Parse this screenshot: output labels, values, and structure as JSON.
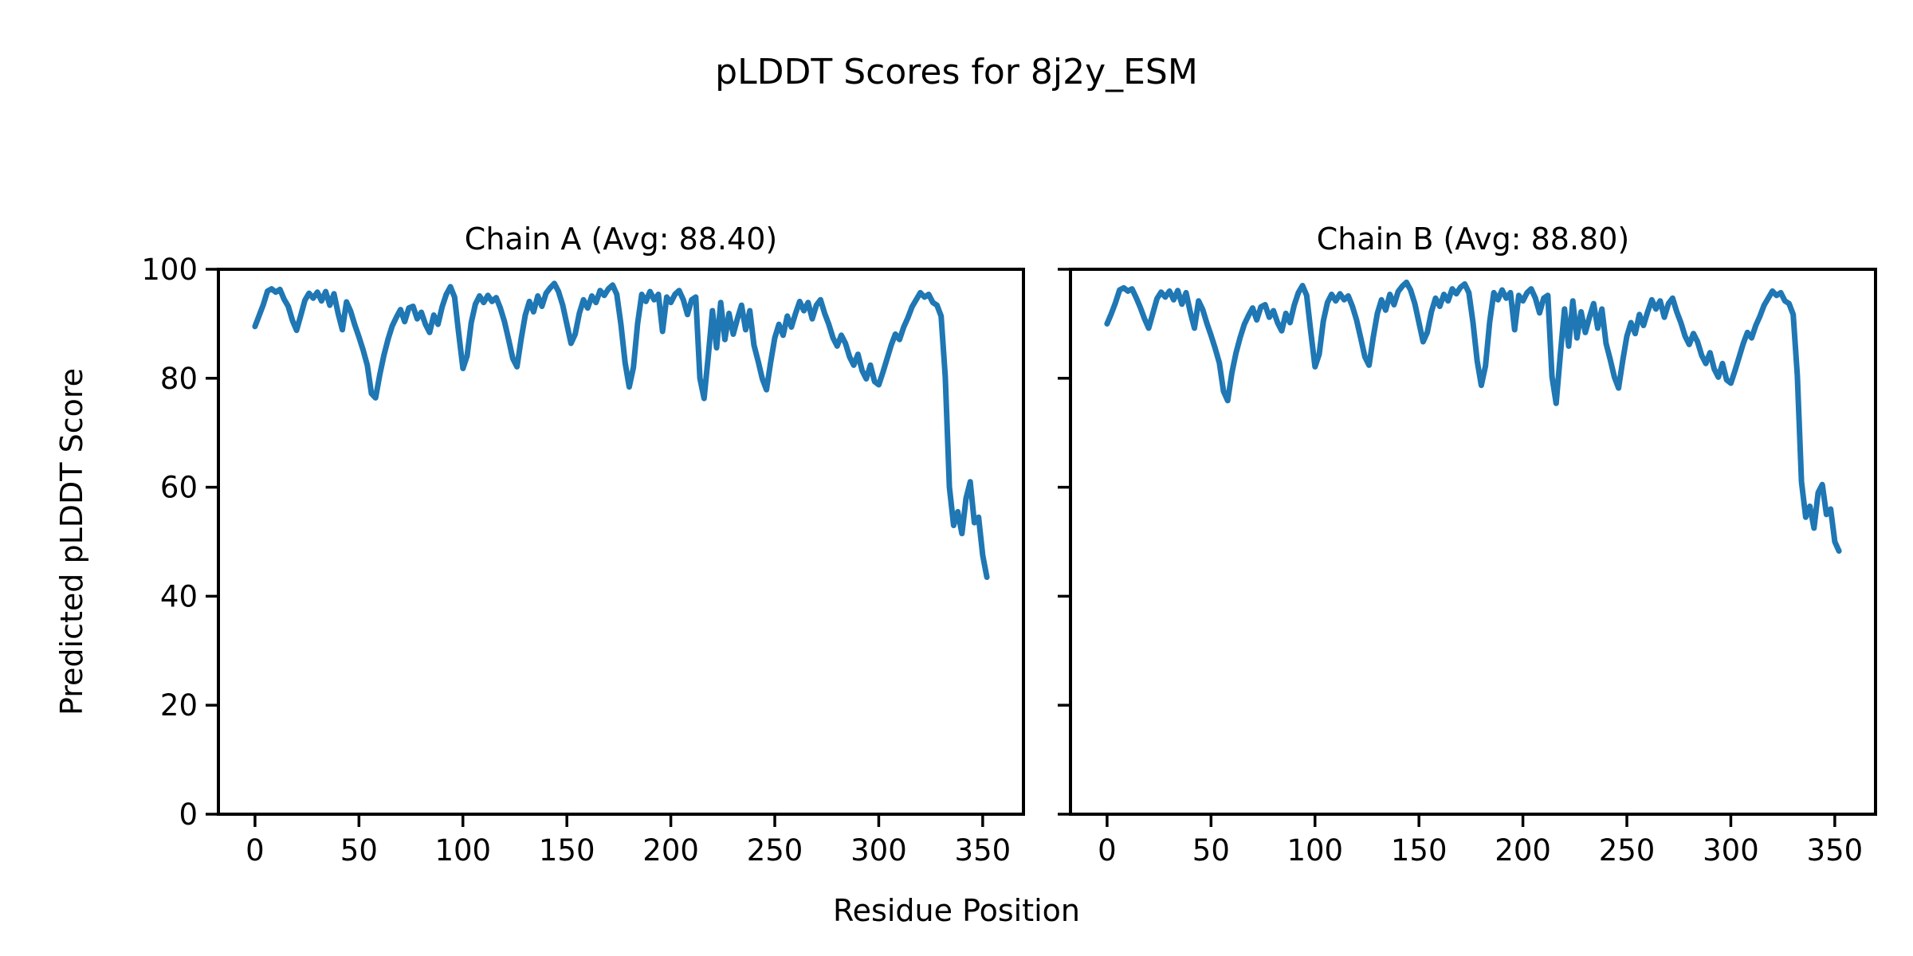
{
  "figure": {
    "title": "pLDDT Scores for 8j2y_ESM",
    "xlabel": "Residue Position",
    "ylabel": "Predicted pLDDT Score",
    "line_color": "#1f77b4",
    "background": "#ffffff",
    "spine_color": "#000000"
  },
  "chart_data": [
    {
      "type": "line",
      "title": "Chain A (Avg: 88.40)",
      "chain": "A",
      "avg": 88.4,
      "xlabel": "Residue Position",
      "ylabel": "Predicted pLDDT Score",
      "xlim": [
        -17.6,
        369.6
      ],
      "ylim": [
        0,
        100
      ],
      "xticks": [
        0,
        50,
        100,
        150,
        200,
        250,
        300,
        350
      ],
      "yticks": [
        0,
        20,
        40,
        60,
        80,
        100
      ],
      "show_ytick_labels": true,
      "grid": false,
      "legend": "none",
      "x": [
        0,
        2,
        4,
        6,
        8,
        10,
        12,
        14,
        16,
        18,
        20,
        22,
        24,
        26,
        28,
        30,
        32,
        34,
        36,
        38,
        40,
        42,
        44,
        46,
        48,
        50,
        52,
        54,
        56,
        58,
        60,
        62,
        64,
        66,
        68,
        70,
        72,
        74,
        76,
        78,
        80,
        82,
        84,
        86,
        88,
        90,
        92,
        94,
        96,
        98,
        100,
        102,
        104,
        106,
        108,
        110,
        112,
        114,
        116,
        118,
        120,
        122,
        124,
        126,
        128,
        130,
        132,
        134,
        136,
        138,
        140,
        142,
        144,
        146,
        148,
        150,
        152,
        154,
        156,
        158,
        160,
        162,
        164,
        166,
        168,
        170,
        172,
        174,
        176,
        178,
        180,
        182,
        184,
        186,
        188,
        190,
        192,
        194,
        196,
        198,
        200,
        202,
        204,
        206,
        208,
        210,
        212,
        214,
        216,
        218,
        220,
        222,
        224,
        226,
        228,
        230,
        232,
        234,
        236,
        238,
        240,
        242,
        244,
        246,
        248,
        250,
        252,
        254,
        256,
        258,
        260,
        262,
        264,
        266,
        268,
        270,
        272,
        274,
        276,
        278,
        280,
        282,
        284,
        286,
        288,
        290,
        292,
        294,
        296,
        298,
        300,
        302,
        304,
        306,
        308,
        310,
        312,
        314,
        316,
        318,
        320,
        322,
        324,
        326,
        328,
        330,
        332,
        334,
        336,
        338,
        340,
        342,
        344,
        346,
        348,
        350,
        352
      ],
      "values": [
        89.5,
        91.5,
        93.5,
        96.0,
        96.4,
        95.8,
        96.3,
        94.5,
        93.2,
        90.6,
        88.8,
        91.5,
        94.3,
        95.6,
        94.7,
        95.8,
        94.2,
        95.9,
        93.4,
        95.5,
        91.9,
        88.9,
        94.0,
        92.3,
        89.8,
        87.6,
        85.2,
        82.4,
        77.2,
        76.4,
        80.6,
        84.2,
        87.2,
        89.6,
        91.2,
        92.6,
        90.4,
        92.9,
        93.2,
        90.9,
        92.1,
        89.9,
        88.4,
        91.6,
        89.9,
        93.1,
        95.4,
        96.8,
        94.9,
        88.2,
        81.8,
        84.1,
        90.2,
        93.6,
        95.1,
        93.9,
        95.2,
        94.1,
        94.8,
        92.9,
        90.4,
        87.1,
        83.6,
        82.1,
        87.2,
        91.6,
        94.1,
        92.2,
        95.1,
        93.2,
        95.6,
        96.6,
        97.4,
        95.9,
        93.4,
        89.9,
        86.4,
        88.1,
        91.9,
        94.4,
        92.9,
        95.1,
        93.9,
        96.1,
        95.2,
        96.4,
        97.1,
        95.4,
        89.9,
        82.9,
        78.4,
        82.0,
        90.0,
        95.4,
        94.1,
        95.9,
        94.4,
        95.4,
        88.6,
        94.9,
        93.9,
        95.4,
        96.1,
        94.4,
        91.7,
        94.4,
        94.9,
        80.0,
        76.3,
        84.1,
        92.4,
        85.6,
        93.9,
        87.1,
        91.9,
        88.1,
        90.9,
        93.4,
        88.9,
        92.4,
        86.1,
        83.1,
        79.9,
        77.9,
        82.9,
        87.4,
        89.9,
        87.9,
        91.4,
        89.4,
        91.9,
        94.1,
        92.4,
        93.9,
        90.9,
        93.4,
        94.4,
        91.9,
        89.9,
        87.4,
        85.9,
        87.9,
        86.4,
        83.9,
        82.4,
        84.4,
        81.4,
        79.9,
        82.4,
        79.4,
        78.8,
        81.1,
        83.6,
        86.1,
        88.1,
        87.1,
        89.4,
        91.1,
        93.1,
        94.4,
        95.7,
        94.9,
        95.4,
        93.9,
        93.4,
        91.4,
        80.3,
        60.0,
        53.0,
        55.5,
        51.5,
        58.0,
        61.0,
        53.5,
        54.5,
        47.5,
        43.5
      ]
    },
    {
      "type": "line",
      "title": "Chain B (Avg: 88.80)",
      "chain": "B",
      "avg": 88.8,
      "xlabel": "Residue Position",
      "ylabel": "Predicted pLDDT Score",
      "xlim": [
        -17.6,
        369.6
      ],
      "ylim": [
        0,
        100
      ],
      "xticks": [
        0,
        50,
        100,
        150,
        200,
        250,
        300,
        350
      ],
      "yticks": [
        0,
        20,
        40,
        60,
        80,
        100
      ],
      "show_ytick_labels": false,
      "grid": false,
      "legend": "none",
      "x": [
        0,
        2,
        4,
        6,
        8,
        10,
        12,
        14,
        16,
        18,
        20,
        22,
        24,
        26,
        28,
        30,
        32,
        34,
        36,
        38,
        40,
        42,
        44,
        46,
        48,
        50,
        52,
        54,
        56,
        58,
        60,
        62,
        64,
        66,
        68,
        70,
        72,
        74,
        76,
        78,
        80,
        82,
        84,
        86,
        88,
        90,
        92,
        94,
        96,
        98,
        100,
        102,
        104,
        106,
        108,
        110,
        112,
        114,
        116,
        118,
        120,
        122,
        124,
        126,
        128,
        130,
        132,
        134,
        136,
        138,
        140,
        142,
        144,
        146,
        148,
        150,
        152,
        154,
        156,
        158,
        160,
        162,
        164,
        166,
        168,
        170,
        172,
        174,
        176,
        178,
        180,
        182,
        184,
        186,
        188,
        190,
        192,
        194,
        196,
        198,
        200,
        202,
        204,
        206,
        208,
        210,
        212,
        214,
        216,
        218,
        220,
        222,
        224,
        226,
        228,
        230,
        232,
        234,
        236,
        238,
        240,
        242,
        244,
        246,
        248,
        250,
        252,
        254,
        256,
        258,
        260,
        262,
        264,
        266,
        268,
        270,
        272,
        274,
        276,
        278,
        280,
        282,
        284,
        286,
        288,
        290,
        292,
        294,
        296,
        298,
        300,
        302,
        304,
        306,
        308,
        310,
        312,
        314,
        316,
        318,
        320,
        322,
        324,
        326,
        328,
        330,
        332,
        334,
        336,
        338,
        340,
        342,
        344,
        346,
        348,
        350,
        352
      ],
      "values": [
        90.0,
        91.8,
        93.8,
        96.2,
        96.6,
        96.0,
        96.4,
        94.8,
        93.0,
        90.9,
        89.2,
        91.9,
        94.6,
        95.8,
        94.9,
        96.0,
        94.4,
        96.1,
        93.6,
        95.7,
        92.2,
        89.2,
        94.2,
        92.6,
        90.1,
        87.9,
        85.5,
        82.8,
        77.6,
        75.9,
        80.9,
        84.6,
        87.5,
        89.9,
        91.5,
        92.9,
        90.7,
        93.1,
        93.5,
        91.2,
        92.4,
        90.2,
        88.7,
        91.9,
        90.2,
        93.4,
        95.7,
        97.0,
        95.2,
        88.5,
        82.1,
        84.4,
        90.5,
        93.9,
        95.4,
        94.2,
        95.5,
        94.4,
        95.1,
        93.2,
        90.7,
        87.4,
        83.9,
        82.4,
        87.5,
        91.9,
        94.4,
        92.5,
        95.4,
        93.5,
        95.9,
        96.9,
        97.6,
        96.2,
        93.7,
        90.2,
        86.7,
        88.4,
        92.2,
        94.7,
        93.2,
        95.4,
        94.2,
        96.4,
        95.5,
        96.7,
        97.3,
        95.7,
        90.2,
        83.2,
        78.7,
        82.3,
        90.3,
        95.7,
        94.4,
        96.2,
        94.7,
        95.7,
        88.9,
        95.2,
        94.2,
        95.7,
        96.4,
        94.7,
        92.0,
        94.7,
        95.2,
        80.3,
        75.4,
        84.4,
        92.7,
        85.9,
        94.2,
        87.4,
        92.2,
        88.4,
        91.2,
        93.7,
        89.2,
        92.7,
        86.4,
        83.4,
        80.2,
        78.2,
        83.2,
        87.7,
        90.2,
        88.2,
        91.7,
        89.7,
        92.2,
        94.4,
        92.7,
        94.2,
        91.2,
        93.7,
        94.7,
        92.2,
        90.2,
        87.7,
        86.2,
        88.2,
        86.7,
        84.2,
        82.7,
        84.7,
        81.7,
        80.2,
        82.7,
        79.7,
        79.1,
        81.4,
        83.9,
        86.4,
        88.4,
        87.4,
        89.7,
        91.4,
        93.4,
        94.7,
        96.0,
        95.2,
        95.7,
        94.2,
        93.7,
        91.7,
        80.5,
        61.0,
        54.5,
        56.5,
        52.5,
        59.0,
        60.5,
        55.0,
        56.0,
        50.0,
        48.3
      ]
    }
  ]
}
